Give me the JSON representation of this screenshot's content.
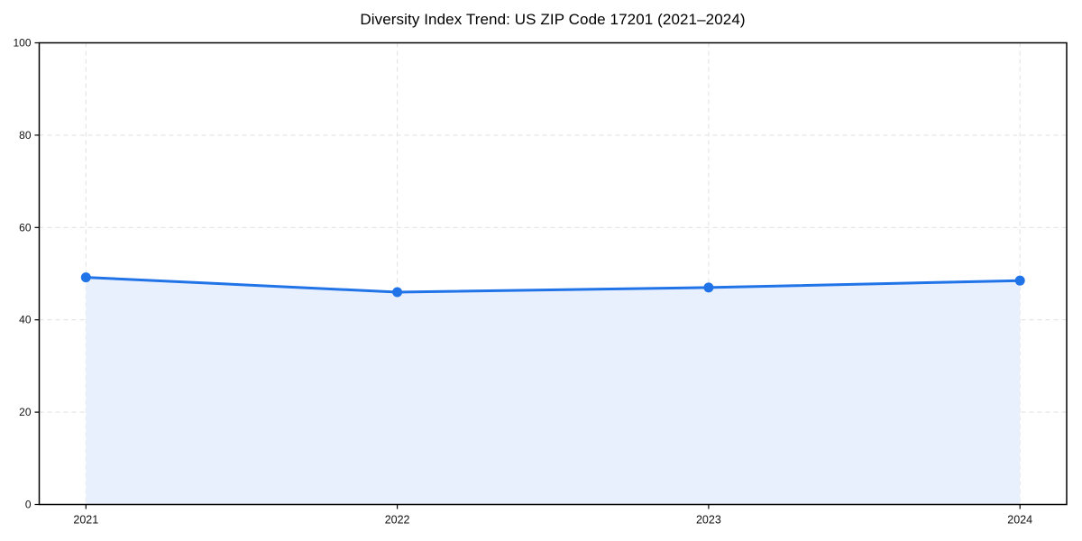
{
  "chart_data": {
    "type": "area",
    "title": "Diversity Index Trend: US ZIP Code 17201 (2021–2024)",
    "x": [
      2021,
      2022,
      2023,
      2024
    ],
    "series": [
      {
        "name": "Diversity Index",
        "values": [
          49.2,
          46.0,
          47.0,
          48.5
        ]
      }
    ],
    "xlabel": "",
    "ylabel": "",
    "ylim": [
      0,
      100
    ],
    "yticks": [
      0,
      20,
      40,
      60,
      80,
      100
    ],
    "xticks": [
      "2021",
      "2022",
      "2023",
      "2024"
    ],
    "x_margin": 0.15,
    "grid": true,
    "grid_style": "dashed",
    "legend_position": "none",
    "colors": {
      "line": "#2173e8",
      "marker": "#2173e8",
      "fill": "#e9f0fd",
      "grid": "#e3e3e3",
      "spine": "#000000",
      "tick_label": "#111111",
      "title": "#000000",
      "background": "#ffffff"
    }
  }
}
